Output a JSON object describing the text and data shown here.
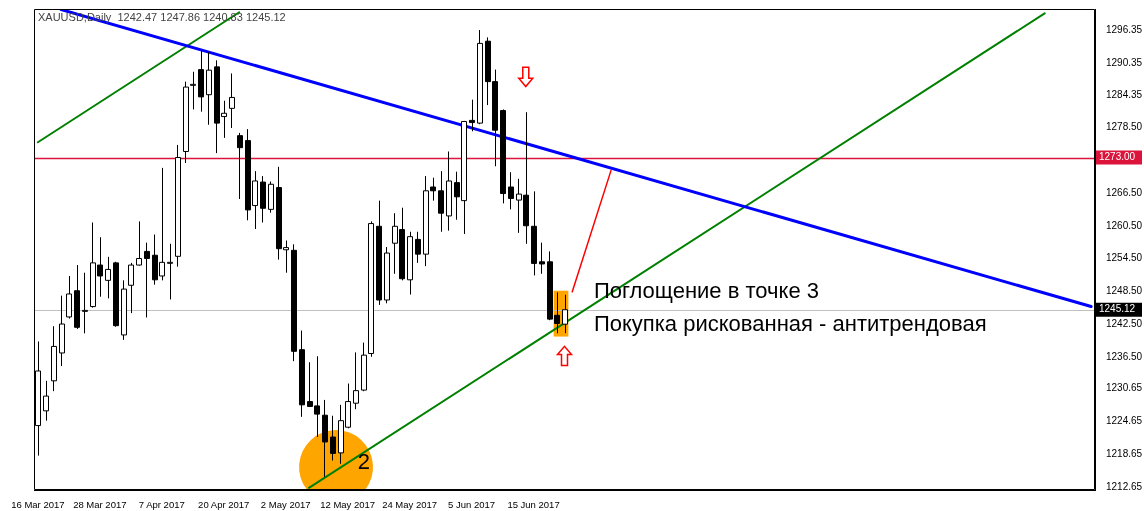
{
  "chart_data": {
    "type": "candlestick",
    "title": "XAUUSD,Daily  1242.47 1247.86 1240.83 1245.12",
    "categories": [
      "16 Mar 2017",
      null,
      null,
      null,
      null,
      null,
      null,
      null,
      "28 Mar 2017",
      null,
      null,
      null,
      null,
      null,
      null,
      null,
      "7 Apr 2017",
      null,
      null,
      null,
      null,
      null,
      null,
      null,
      "20 Apr 2017",
      null,
      null,
      null,
      null,
      null,
      null,
      null,
      "2 May 2017",
      null,
      null,
      null,
      null,
      null,
      null,
      null,
      "12 May 2017",
      null,
      null,
      null,
      null,
      null,
      null,
      null,
      "24 May 2017",
      null,
      null,
      null,
      null,
      null,
      null,
      null,
      "5 Jun 2017",
      null,
      null,
      null,
      null,
      null,
      null,
      null,
      "15 Jun 2017",
      null,
      null,
      null,
      null,
      null,
      null,
      null,
      null,
      null,
      null,
      null,
      null,
      null,
      null,
      null,
      null,
      null,
      null,
      null,
      null,
      null,
      null,
      null,
      null,
      null,
      null,
      null,
      null,
      null,
      null,
      null,
      null,
      null,
      null,
      null,
      null,
      null,
      null,
      null,
      null,
      null,
      null,
      null,
      null,
      null,
      null,
      null,
      null,
      null,
      null,
      null,
      null,
      null,
      null,
      null,
      null,
      null,
      null,
      null,
      null,
      null,
      null,
      null,
      null,
      null,
      null,
      null,
      null,
      null,
      null,
      null,
      null
    ],
    "ohlc": [
      [
        1223.9,
        1239.3,
        1218.4,
        1233.9
      ],
      [
        1226.6,
        1232.1,
        1224.8,
        1229.3
      ],
      [
        1232.1,
        1242.1,
        1230.2,
        1238.4
      ],
      [
        1237.2,
        1247.7,
        1234.8,
        1242.5
      ],
      [
        1243.8,
        1251.3,
        1243.5,
        1248.0
      ],
      [
        1248.6,
        1253.3,
        1241.6,
        1241.9
      ],
      [
        1244.9,
        1251.9,
        1240.8,
        1245.0
      ],
      [
        1245.7,
        1261.1,
        1245.5,
        1253.7
      ],
      [
        1253.3,
        1258.4,
        1247.5,
        1251.3
      ],
      [
        1250.5,
        1254.8,
        1247.2,
        1252.5
      ],
      [
        1253.7,
        1253.9,
        1242.0,
        1242.2
      ],
      [
        1240.5,
        1250.5,
        1239.6,
        1248.9
      ],
      [
        1249.6,
        1253.7,
        1244.5,
        1253.3
      ],
      [
        1253.3,
        1261.3,
        1253.2,
        1254.5
      ],
      [
        1255.8,
        1257.4,
        1243.7,
        1254.5
      ],
      [
        1255.1,
        1258.9,
        1249.7,
        1250.6
      ],
      [
        1251.3,
        1271.1,
        1250.5,
        1253.8
      ],
      [
        1253.7,
        1257.2,
        1247.0,
        1253.8
      ],
      [
        1254.9,
        1275.3,
        1253.0,
        1273.0
      ],
      [
        1274.1,
        1286.9,
        1272.0,
        1285.9
      ],
      [
        1286.3,
        1288.7,
        1281.8,
        1286.4
      ],
      [
        1289.1,
        1292.6,
        1281.4,
        1284.1
      ],
      [
        1284.5,
        1292.3,
        1279.0,
        1289.0
      ],
      [
        1289.6,
        1290.8,
        1273.8,
        1279.3
      ],
      [
        1280.5,
        1283.4,
        1276.6,
        1281.1
      ],
      [
        1282.0,
        1288.4,
        1278.4,
        1284.0
      ],
      [
        1277.0,
        1277.5,
        1265.4,
        1274.8
      ],
      [
        1276.1,
        1278.2,
        1261.5,
        1263.4
      ],
      [
        1264.2,
        1270.5,
        1259.9,
        1268.7
      ],
      [
        1268.5,
        1269.6,
        1261.1,
        1263.7
      ],
      [
        1263.5,
        1268.6,
        1262.9,
        1268.1
      ],
      [
        1267.5,
        1271.3,
        1254.3,
        1256.3
      ],
      [
        1256.1,
        1257.8,
        1251.9,
        1256.5
      ],
      [
        1256.0,
        1257.1,
        1235.7,
        1237.5
      ],
      [
        1237.8,
        1241.3,
        1225.5,
        1227.7
      ],
      [
        1228.3,
        1235.5,
        1227.3,
        1227.4
      ],
      [
        1227.5,
        1236.6,
        1221.8,
        1226.0
      ],
      [
        1225.8,
        1228.6,
        1214.5,
        1220.9
      ],
      [
        1221.8,
        1225.7,
        1217.5,
        1218.8
      ],
      [
        1218.9,
        1227.7,
        1216.9,
        1224.8
      ],
      [
        1223.6,
        1231.6,
        1223.4,
        1228.3
      ],
      [
        1228.0,
        1237.3,
        1226.9,
        1230.3
      ],
      [
        1230.4,
        1239.1,
        1230.2,
        1236.8
      ],
      [
        1237.1,
        1261.3,
        1236.5,
        1260.9
      ],
      [
        1260.4,
        1265.1,
        1246.0,
        1246.9
      ],
      [
        1246.9,
        1256.6,
        1246.3,
        1255.5
      ],
      [
        1257.3,
        1262.8,
        1251.7,
        1260.4
      ],
      [
        1259.8,
        1263.8,
        1250.5,
        1250.8
      ],
      [
        1250.6,
        1259.4,
        1247.9,
        1258.5
      ],
      [
        1258.0,
        1259.4,
        1253.7,
        1255.3
      ],
      [
        1255.3,
        1269.6,
        1253.1,
        1266.9
      ],
      [
        1267.6,
        1269.3,
        1265.1,
        1266.9
      ],
      [
        1266.9,
        1270.5,
        1259.4,
        1262.8
      ],
      [
        1262.3,
        1274.1,
        1259.6,
        1268.7
      ],
      [
        1268.4,
        1270.4,
        1261.6,
        1265.8
      ],
      [
        1265.1,
        1279.7,
        1259.0,
        1279.6
      ],
      [
        1279.8,
        1283.6,
        1277.8,
        1279.4
      ],
      [
        1279.3,
        1296.35,
        1279.1,
        1293.9
      ],
      [
        1294.3,
        1295.0,
        1282.6,
        1286.9
      ],
      [
        1286.9,
        1289.1,
        1271.4,
        1278.0
      ],
      [
        1281.6,
        1281.8,
        1264.6,
        1266.4
      ],
      [
        1267.6,
        1270.3,
        1263.5,
        1265.5
      ],
      [
        1265.2,
        1269.1,
        1259.2,
        1266.3
      ],
      [
        1266.1,
        1281.3,
        1257.2,
        1260.5
      ],
      [
        1260.4,
        1266.8,
        1251.4,
        1253.6
      ],
      [
        1253.9,
        1257.4,
        1251.7,
        1253.5
      ],
      [
        1253.9,
        1255.8,
        1243.2,
        1243.4
      ],
      [
        1244.1,
        1248.3,
        1240.8,
        1242.6
      ],
      [
        1242.47,
        1247.86,
        1240.83,
        1245.12
      ],
      null,
      null,
      null,
      null,
      null,
      null,
      null,
      null,
      null,
      null,
      null,
      null,
      null,
      null,
      null,
      null,
      null,
      null,
      null,
      null,
      null,
      null,
      null,
      null,
      null,
      null,
      null,
      null,
      null,
      null,
      null,
      null,
      null,
      null,
      null,
      null,
      null,
      null,
      null,
      null,
      null,
      null,
      null,
      null,
      null,
      null,
      null,
      null,
      null,
      null,
      null,
      null,
      null,
      null,
      null,
      null,
      null,
      null,
      null,
      null,
      null,
      null,
      null,
      null,
      null,
      null,
      null,
      null
    ],
    "series": [
      {
        "type": "line",
        "color": "#0000ff",
        "values": [
          null,
          null,
          null,
          1300.1,
          null,
          null,
          null,
          null,
          null,
          null,
          null,
          null,
          null,
          null,
          null,
          null,
          null,
          null,
          null,
          null,
          null,
          null,
          null,
          null,
          null,
          null,
          null,
          null,
          null,
          null,
          null,
          null,
          null,
          null,
          null,
          null,
          null,
          null,
          null,
          null,
          null,
          null,
          null,
          null,
          null,
          null,
          null,
          null,
          null,
          null,
          null,
          null,
          null,
          null,
          null,
          null,
          null,
          null,
          null,
          null,
          null,
          null,
          null,
          null,
          null,
          null,
          null,
          null,
          null,
          null,
          null,
          null,
          null,
          null,
          null,
          null,
          null,
          null,
          null,
          null,
          null,
          null,
          null,
          null,
          null,
          null,
          null,
          null,
          null,
          null,
          null,
          null,
          null,
          null,
          null,
          null,
          null,
          null,
          null,
          null,
          null,
          null,
          null,
          null,
          null,
          null,
          null,
          null,
          null,
          null,
          null,
          null,
          null,
          null,
          null,
          null,
          null,
          null,
          null,
          null,
          null,
          null,
          null,
          null,
          null,
          null,
          null,
          null,
          null,
          null,
          null,
          null,
          null,
          null,
          null,
          null,
          1245.7
        ]
      },
      {
        "type": "line",
        "color": "#008000",
        "values": [
          1275.8,
          null,
          null,
          null,
          null,
          null,
          null,
          null,
          null,
          null,
          null,
          null,
          null,
          null,
          null,
          null,
          null,
          null,
          null,
          null,
          null,
          null,
          null,
          null,
          null,
          null,
          1299.6,
          null,
          null,
          null,
          null,
          null,
          null,
          null,
          null,
          null,
          null,
          null,
          null,
          null,
          null,
          null,
          null,
          null,
          null,
          null,
          null,
          null,
          null,
          null,
          null,
          null,
          null,
          null,
          null,
          null,
          null,
          null,
          null,
          null,
          null,
          null,
          null,
          null,
          null,
          null,
          null,
          null,
          null,
          null,
          null,
          null,
          null,
          null,
          null,
          null,
          null,
          null,
          null,
          null,
          null,
          null,
          null,
          null,
          null,
          null,
          null,
          null,
          null,
          null,
          null,
          null,
          null,
          null,
          null,
          null,
          null,
          null,
          null,
          null,
          null,
          null,
          null,
          null,
          null,
          null,
          null,
          null,
          null,
          null,
          null,
          null,
          null,
          null,
          null,
          null,
          null,
          null,
          null,
          null,
          null,
          null,
          null,
          null,
          null,
          null,
          null,
          null,
          null,
          null,
          null,
          null,
          null,
          null,
          null,
          null,
          null
        ]
      },
      {
        "type": "line",
        "color": "#008000",
        "values": [
          null,
          null,
          null,
          null,
          null,
          null,
          null,
          null,
          null,
          null,
          null,
          null,
          null,
          null,
          null,
          null,
          null,
          null,
          null,
          null,
          null,
          null,
          null,
          null,
          null,
          null,
          null,
          null,
          null,
          null,
          null,
          null,
          null,
          null,
          null,
          1212.5,
          null,
          null,
          null,
          null,
          null,
          null,
          null,
          null,
          null,
          null,
          null,
          null,
          null,
          null,
          null,
          null,
          null,
          null,
          null,
          null,
          null,
          null,
          null,
          null,
          null,
          null,
          null,
          null,
          null,
          null,
          null,
          null,
          null,
          null,
          null,
          null,
          null,
          null,
          null,
          null,
          null,
          null,
          null,
          null,
          null,
          null,
          null,
          null,
          null,
          null,
          null,
          null,
          null,
          null,
          null,
          null,
          null,
          null,
          null,
          null,
          null,
          null,
          null,
          null,
          null,
          null,
          null,
          null,
          null,
          null,
          null,
          null,
          null,
          null,
          null,
          null,
          null,
          null,
          null,
          null,
          null,
          null,
          null,
          null,
          null,
          null,
          null,
          null,
          null,
          null,
          null,
          null,
          null,
          null,
          1299.4,
          null,
          null,
          null,
          null,
          null,
          null
        ]
      },
      {
        "type": "line",
        "color": "#ff0000",
        "values": [
          null,
          null,
          null,
          null,
          null,
          null,
          null,
          null,
          null,
          null,
          null,
          null,
          null,
          null,
          null,
          null,
          null,
          null,
          null,
          null,
          null,
          null,
          null,
          null,
          null,
          null,
          null,
          null,
          null,
          null,
          null,
          null,
          null,
          null,
          null,
          null,
          null,
          null,
          null,
          null,
          null,
          null,
          null,
          null,
          null,
          null,
          null,
          null,
          null,
          null,
          null,
          null,
          null,
          null,
          null,
          null,
          null,
          null,
          null,
          null,
          null,
          null,
          null,
          null,
          null,
          null,
          null,
          null,
          null,
          1248.4,
          null,
          null,
          null,
          null,
          1270.6,
          null,
          null,
          null,
          null,
          null,
          null,
          null,
          null,
          null,
          null,
          null,
          null,
          null,
          null,
          null,
          null,
          null,
          null,
          null,
          null,
          null,
          null,
          null,
          null,
          null,
          null,
          null,
          null,
          null,
          null,
          null,
          null,
          null,
          null,
          null,
          null,
          null,
          null,
          null,
          null,
          null,
          null,
          null,
          null,
          null,
          null,
          null,
          null,
          null,
          null,
          null,
          null,
          null,
          null,
          null,
          null,
          null,
          null,
          null,
          null,
          null,
          null
        ]
      }
    ],
    "ylim": [
      1212.1,
      1300.2
    ],
    "yticks": [
      1212.65,
      1218.65,
      1224.65,
      1230.65,
      {
        "value": 1236.5,
        "label": "1236.50"
      },
      {
        "value": 1242.5,
        "label": "1242.50"
      },
      {
        "value": 1248.5,
        "label": "1248.50"
      },
      {
        "value": 1254.5,
        "label": "1254.50"
      },
      {
        "value": 1260.5,
        "label": "1260.50"
      },
      {
        "value": 1266.5,
        "label": "1266.50"
      },
      {
        "value": 1278.5,
        "label": "1278.50"
      },
      1284.35,
      1290.35,
      1296.35
    ],
    "ref_lines": [
      {
        "axis": "y",
        "value": 1273.0,
        "label": "1273.00",
        "color": "#dc143c"
      },
      {
        "axis": "y",
        "value": 1245.12,
        "label": "1245.12",
        "color": "#c0c0c0"
      }
    ],
    "annotations": [
      "2",
      "Поглощение в точке 3",
      "Покупка рискованная - антитрендовая"
    ],
    "legend": false,
    "grid": false
  }
}
